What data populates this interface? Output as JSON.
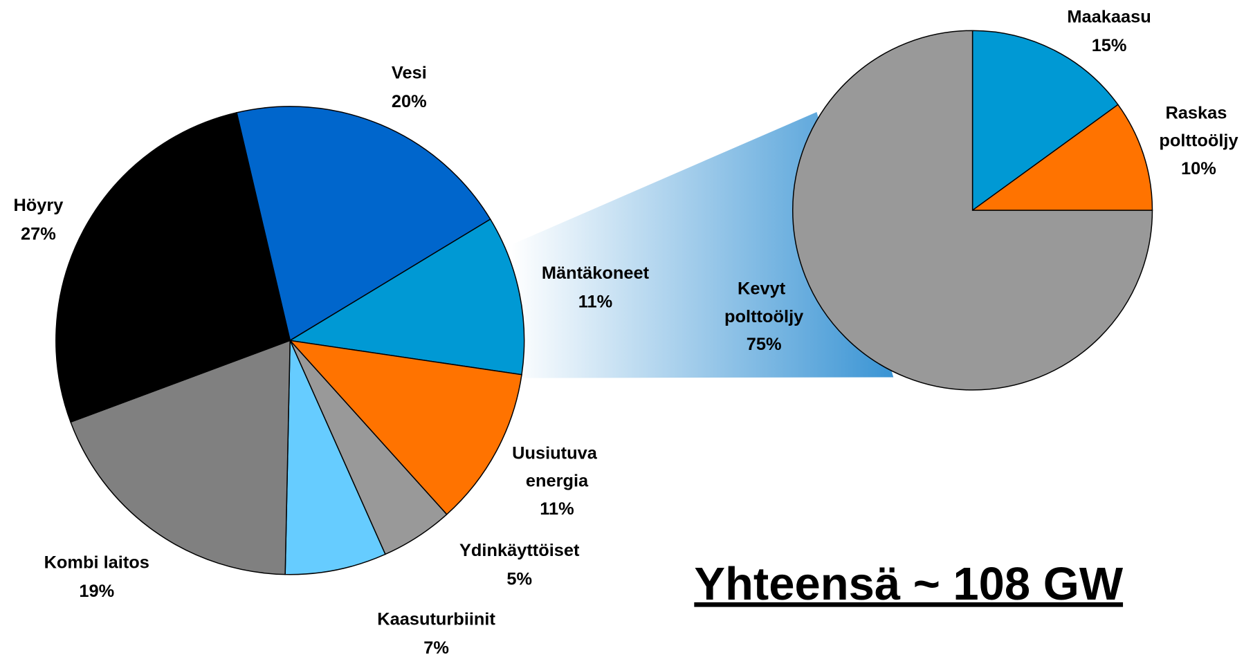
{
  "chart_data": [
    {
      "type": "pie",
      "categories": [
        "Vesi",
        "Mäntäkoneet",
        "Uusiutuva energia",
        "Ydinkäyttöiset",
        "Kaasuturbiinit",
        "Kombi laitos",
        "Höyry"
      ],
      "values": [
        20,
        11,
        11,
        5,
        7,
        19,
        27
      ],
      "value_labels": [
        "20%",
        "11%",
        "11%",
        "5%",
        "7%",
        "19%",
        "27%"
      ],
      "colors": [
        "#0066cc",
        "#0099d4",
        "#ff7300",
        "#999999",
        "#66ccff",
        "#808080",
        "#000000"
      ],
      "annotation": "Yhteensä ~ 108 GW"
    },
    {
      "type": "pie",
      "categories": [
        "Maakaasu",
        "Raskas polttoöljy",
        "Kevyt polttoöljy"
      ],
      "values": [
        15,
        10,
        75
      ],
      "value_labels": [
        "15%",
        "10%",
        "75%"
      ],
      "colors": [
        "#0099d4",
        "#ff7300",
        "#999999"
      ]
    }
  ]
}
